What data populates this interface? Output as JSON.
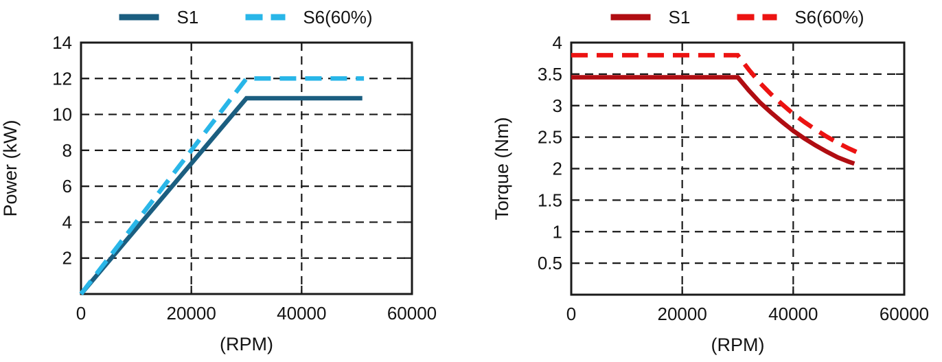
{
  "chart_data": [
    {
      "type": "line",
      "panel": "left",
      "title": "",
      "xlabel": "(RPM)",
      "ylabel": "Power (kW)",
      "xlim": [
        0,
        60000
      ],
      "ylim": [
        0,
        14
      ],
      "x_ticks": [
        0,
        20000,
        40000,
        60000
      ],
      "x_tick_labels": [
        "0",
        "20000",
        "40000",
        "60000"
      ],
      "y_ticks": [
        2,
        4,
        6,
        8,
        10,
        12,
        14
      ],
      "y_tick_labels": [
        "2",
        "4",
        "6",
        "8",
        "10",
        "12",
        "14"
      ],
      "grid": true,
      "grid_style": "dashed",
      "legend_position": "top-center",
      "frame_color": "#1a1a1a",
      "grid_color": "#1a1a1a",
      "text_color": "#131313",
      "series": [
        {
          "name": "S1",
          "color": "#1b5e80",
          "line_style": "solid",
          "points": [
            [
              0,
              0
            ],
            [
              30000,
              10.9
            ],
            [
              51000,
              10.9
            ]
          ]
        },
        {
          "name": "S6(60%)",
          "color": "#29b6e8",
          "line_style": "dashed",
          "points": [
            [
              0,
              0
            ],
            [
              30000,
              12
            ],
            [
              51300,
              12
            ]
          ]
        }
      ]
    },
    {
      "type": "line",
      "panel": "right",
      "title": "",
      "xlabel": "(RPM)",
      "ylabel": "Torque (Nm)",
      "xlim": [
        0,
        60000
      ],
      "ylim": [
        0,
        4
      ],
      "x_ticks": [
        0,
        20000,
        40000,
        60000
      ],
      "x_tick_labels": [
        "0",
        "20000",
        "40000",
        "60000"
      ],
      "y_ticks": [
        0.5,
        1,
        1.5,
        2,
        2.5,
        3,
        3.5,
        4
      ],
      "y_tick_labels": [
        "0.5",
        "1",
        "1.5",
        "2",
        "2.5",
        "3",
        "3.5",
        "4"
      ],
      "grid": true,
      "grid_style": "dashed",
      "legend_position": "top-center",
      "frame_color": "#1a1a1a",
      "grid_color": "#1a1a1a",
      "text_color": "#131313",
      "series": [
        {
          "name": "S1",
          "color": "#b00d12",
          "line_style": "solid",
          "points": [
            [
              0,
              3.45
            ],
            [
              30000,
              3.45
            ],
            [
              32000,
              3.24
            ],
            [
              34000,
              3.05
            ],
            [
              36000,
              2.89
            ],
            [
              38000,
              2.74
            ],
            [
              40000,
              2.6
            ],
            [
              42000,
              2.48
            ],
            [
              44000,
              2.37
            ],
            [
              46000,
              2.27
            ],
            [
              48000,
              2.18
            ],
            [
              50000,
              2.11
            ],
            [
              51000,
              2.08
            ]
          ]
        },
        {
          "name": "S6(60%)",
          "color": "#ec1312",
          "line_style": "dashed",
          "points": [
            [
              0,
              3.8
            ],
            [
              30000,
              3.8
            ],
            [
              32000,
              3.57
            ],
            [
              34000,
              3.36
            ],
            [
              36000,
              3.18
            ],
            [
              38000,
              3.02
            ],
            [
              40000,
              2.87
            ],
            [
              42000,
              2.74
            ],
            [
              44000,
              2.62
            ],
            [
              46000,
              2.51
            ],
            [
              48000,
              2.41
            ],
            [
              50000,
              2.32
            ],
            [
              51500,
              2.26
            ]
          ]
        }
      ]
    }
  ]
}
